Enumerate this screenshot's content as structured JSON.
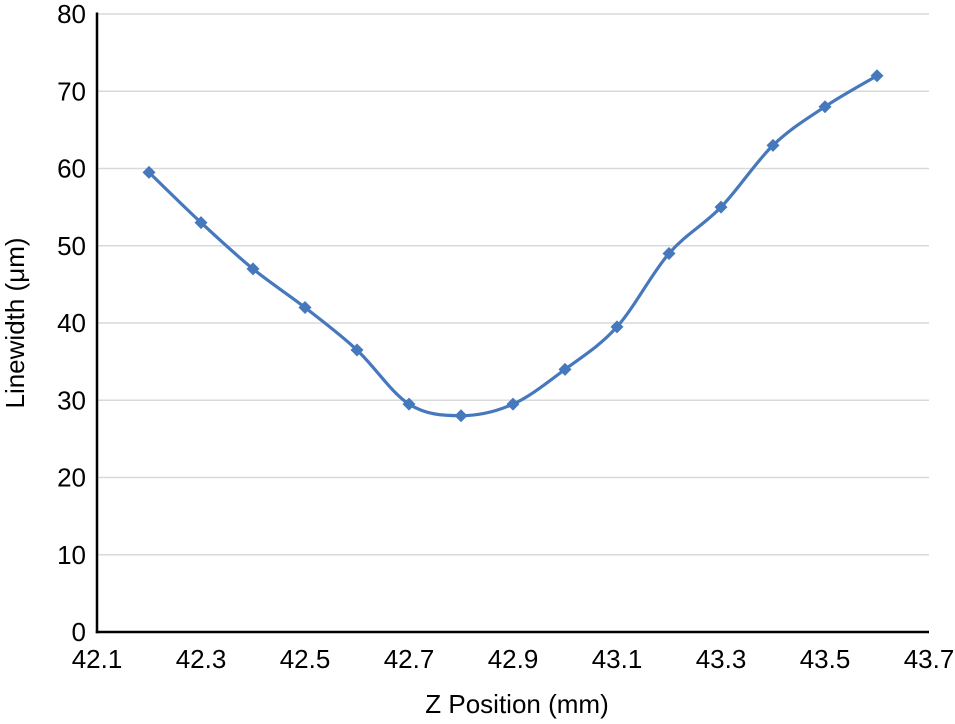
{
  "figure": {
    "background": "#FFFFFF"
  },
  "chart_data": {
    "type": "line",
    "title": "",
    "xlabel": "Z Position (mm)",
    "ylabel": "Linewidth (μm)",
    "x": [
      42.2,
      42.3,
      42.4,
      42.5,
      42.6,
      42.7,
      42.8,
      42.9,
      43.0,
      43.1,
      43.2,
      43.3,
      43.4,
      43.5,
      43.6
    ],
    "series": [
      {
        "name": "Linewidth",
        "values": [
          59.5,
          53,
          47,
          42,
          36.5,
          29.5,
          28,
          29.5,
          34,
          39.5,
          49,
          55,
          63,
          68,
          72
        ],
        "color": "#4678BD",
        "marker": "diamond",
        "smooth": true
      }
    ],
    "xlim": [
      42.1,
      43.7
    ],
    "ylim": [
      0,
      80
    ],
    "x_ticks": [
      42.1,
      42.3,
      42.5,
      42.7,
      42.9,
      43.1,
      43.3,
      43.5,
      43.7
    ],
    "x_tick_labels": [
      "42.1",
      "42.3",
      "42.5",
      "42.7",
      "42.9",
      "43.1",
      "43.3",
      "43.5",
      "43.7"
    ],
    "y_ticks": [
      0,
      10,
      20,
      30,
      40,
      50,
      60,
      70,
      80
    ],
    "y_tick_labels": [
      "0",
      "10",
      "20",
      "30",
      "40",
      "50",
      "60",
      "70",
      "80"
    ],
    "grid": "horizontal",
    "gridline_color": "#D9D9D9",
    "axis_color": "#000000",
    "legend": "none"
  }
}
